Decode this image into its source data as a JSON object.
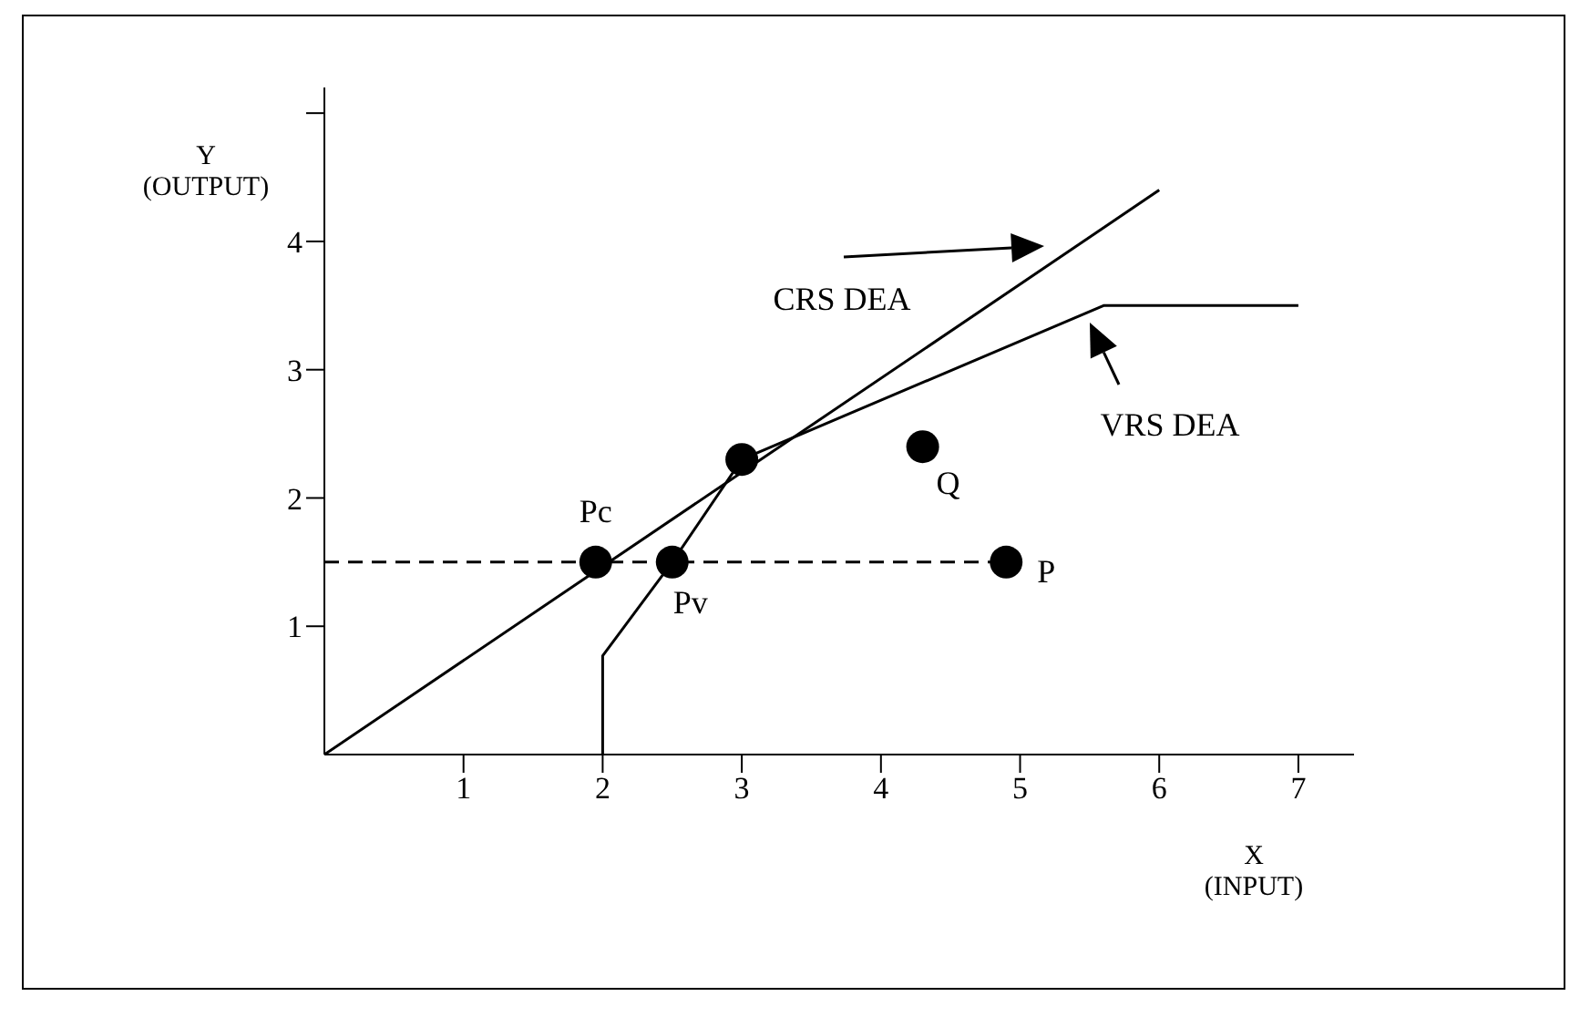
{
  "chart_data": {
    "type": "scatter",
    "xlabel": "X\n(INPUT)",
    "ylabel": "Y\n(OUTPUT)",
    "xlim": [
      0,
      7.4
    ],
    "ylim": [
      0,
      5.2
    ],
    "xticks": [
      1,
      2,
      3,
      4,
      5,
      6,
      7
    ],
    "yticks": [
      1,
      2,
      3,
      4,
      {
        "value": 5,
        "label": null
      }
    ],
    "grid": false,
    "legend": false,
    "marker": "circle",
    "series": [
      {
        "type": "line",
        "color": "#000000",
        "marker": "none",
        "line_style": "solid",
        "x": [
          0,
          6
        ],
        "values": [
          0,
          4.4
        ]
      },
      {
        "type": "line",
        "color": "#000000",
        "marker": "none",
        "line_style": "solid",
        "x": [
          2,
          2,
          2.5,
          3,
          5.6,
          7
        ],
        "values": [
          0,
          0.77,
          1.5,
          2.3,
          3.5,
          3.5
        ]
      },
      {
        "type": "line",
        "color": "#000000",
        "marker": "none",
        "line_style": "dashed",
        "x": [
          0,
          4.9
        ],
        "values": [
          1.5,
          1.5
        ]
      },
      {
        "color": "#000000",
        "x": [
          1.95,
          2.5,
          3,
          4.3,
          4.9
        ],
        "values": [
          1.5,
          1.5,
          2.3,
          2.4,
          1.5
        ],
        "value_labels": [
          "Pc",
          "Pv",
          null,
          "Q",
          "P"
        ]
      }
    ],
    "annotations": [
      "CRS DEA",
      "VRS DEA"
    ]
  }
}
